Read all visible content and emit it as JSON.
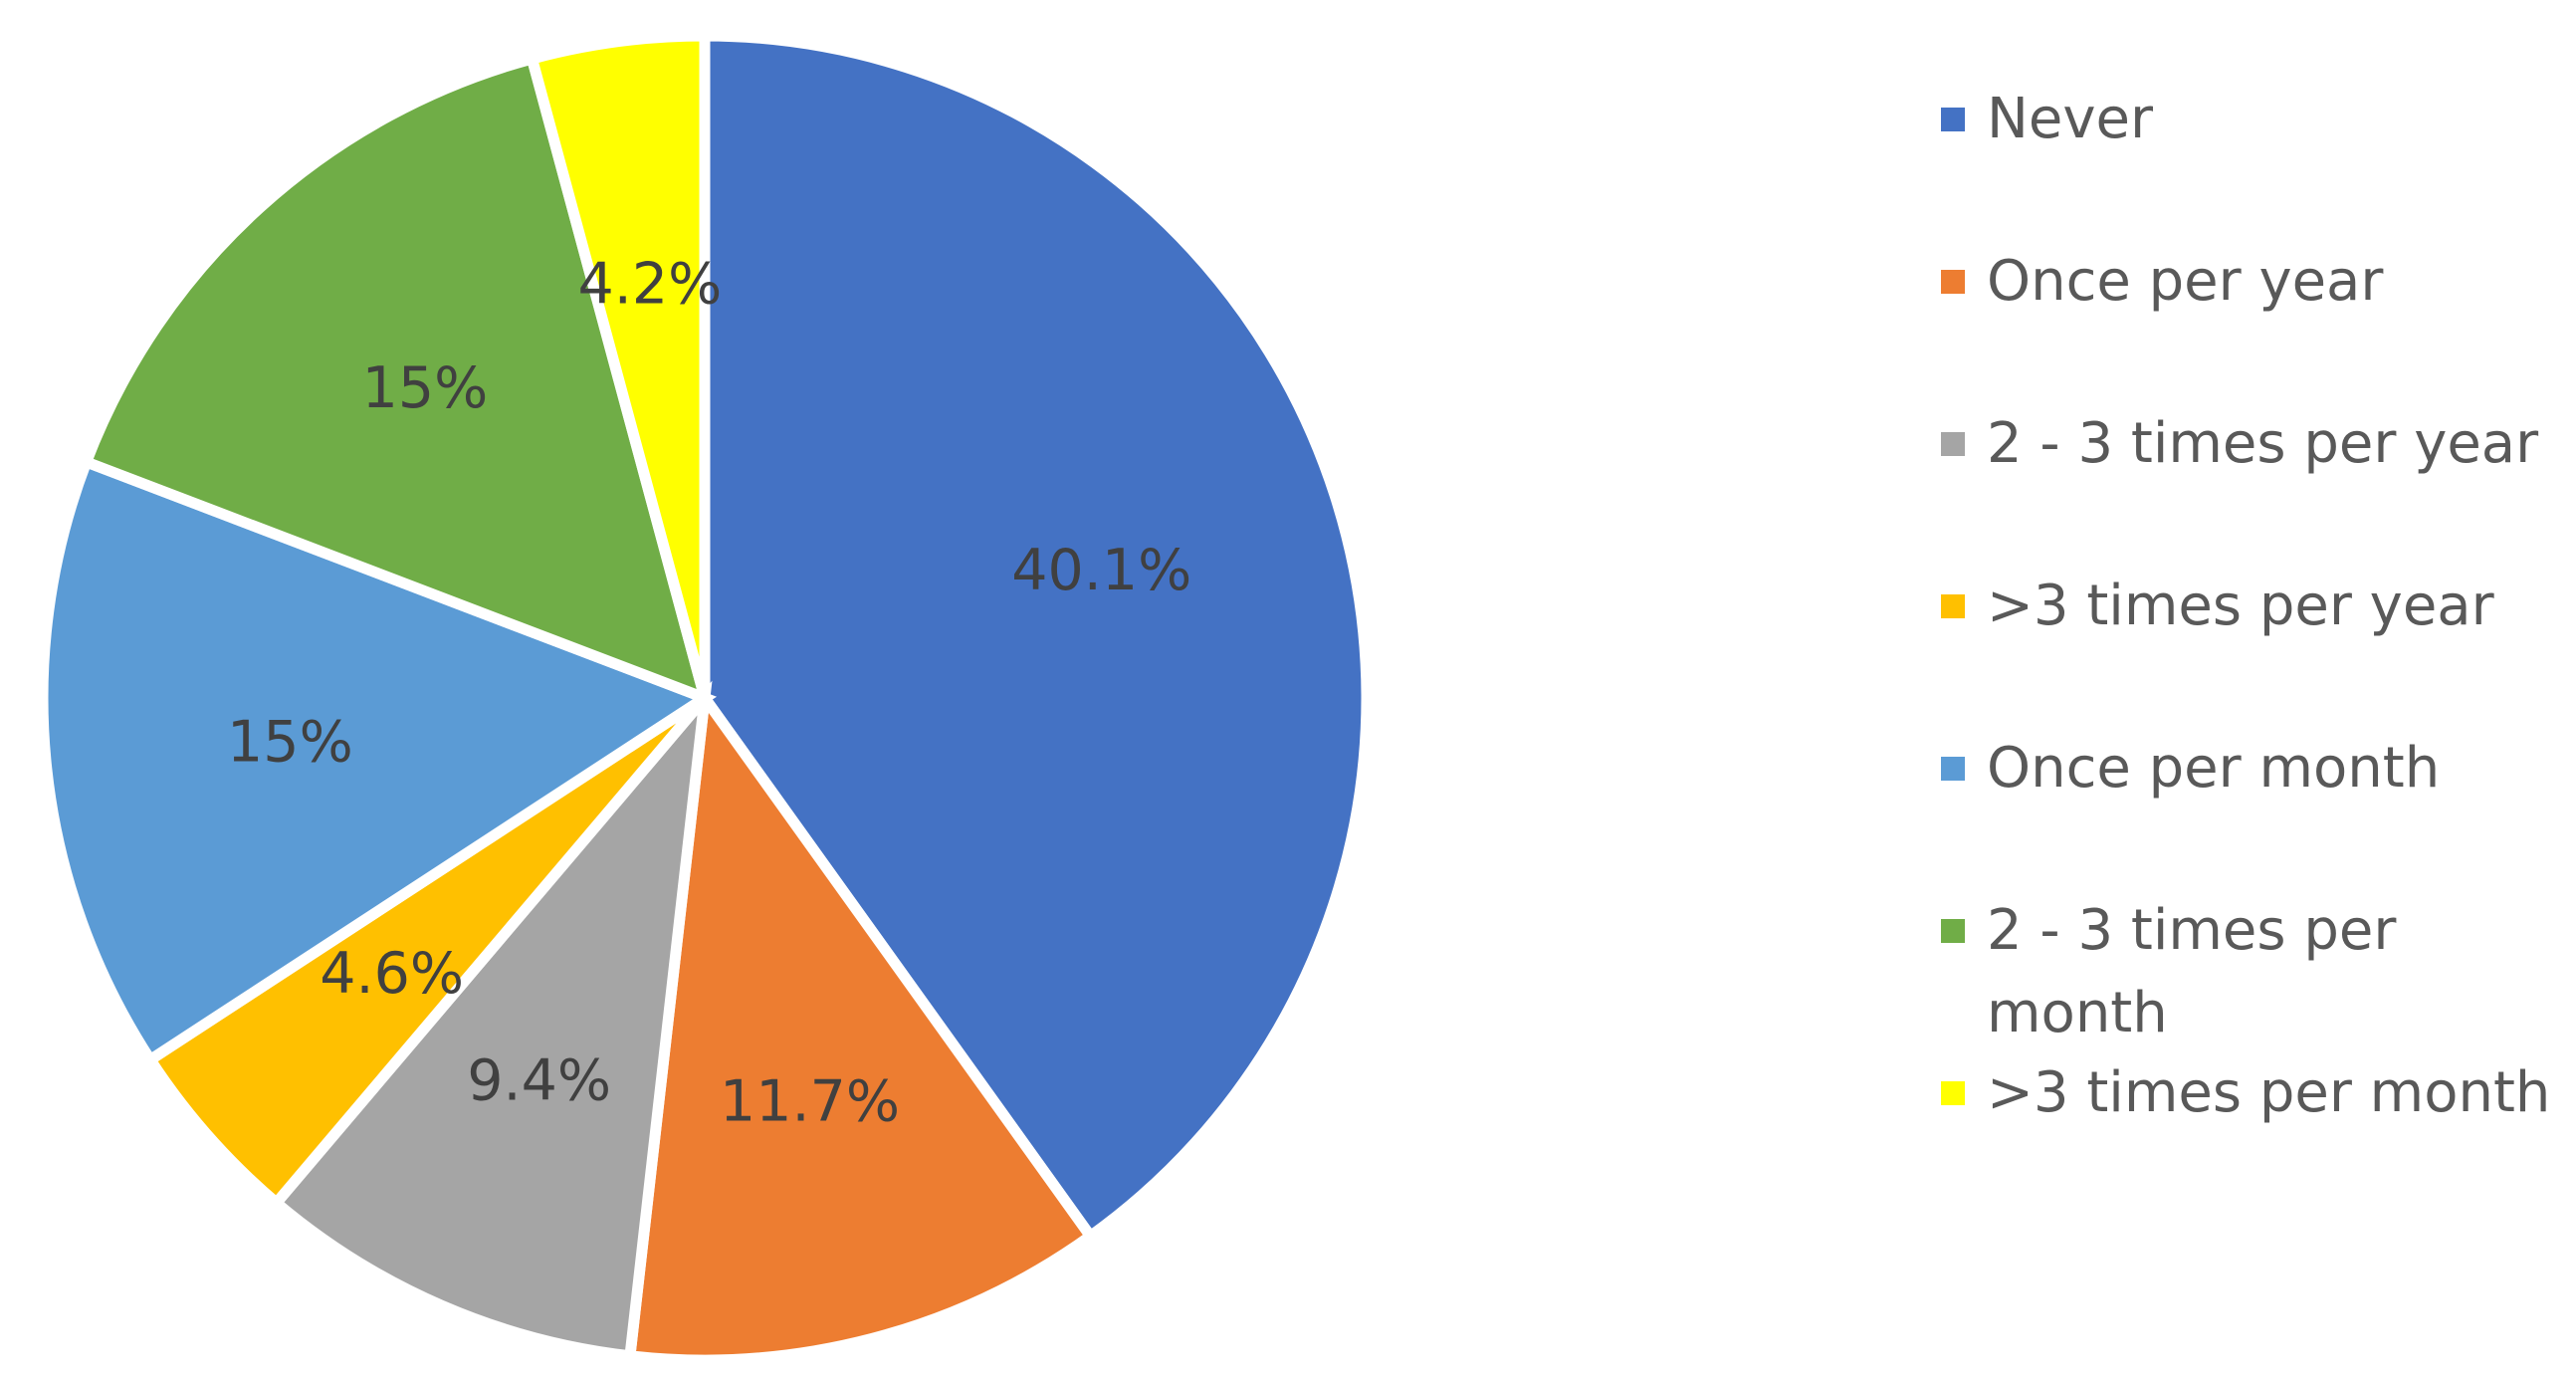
{
  "chart_data": {
    "type": "pie",
    "title": "",
    "legend_position": "right",
    "series": [
      {
        "values": [
          40.1,
          11.7,
          9.4,
          4.6,
          15,
          15,
          4.2
        ],
        "data_labels": [
          "40.1%",
          "11.7%",
          "9.4%",
          "4.6%",
          "15%",
          "15%",
          "4.2%"
        ]
      }
    ],
    "categories": [
      "Never",
      "Once per year",
      "2 - 3 times per year",
      ">3 times per year",
      "Once per month",
      "2 - 3 times per month",
      ">3 times per month"
    ],
    "colors": [
      "#4472C4",
      "#ED7D31",
      "#A5A5A5",
      "#FFC000",
      "#5B9BD5",
      "#70AD47",
      "#FFFF00"
    ]
  }
}
